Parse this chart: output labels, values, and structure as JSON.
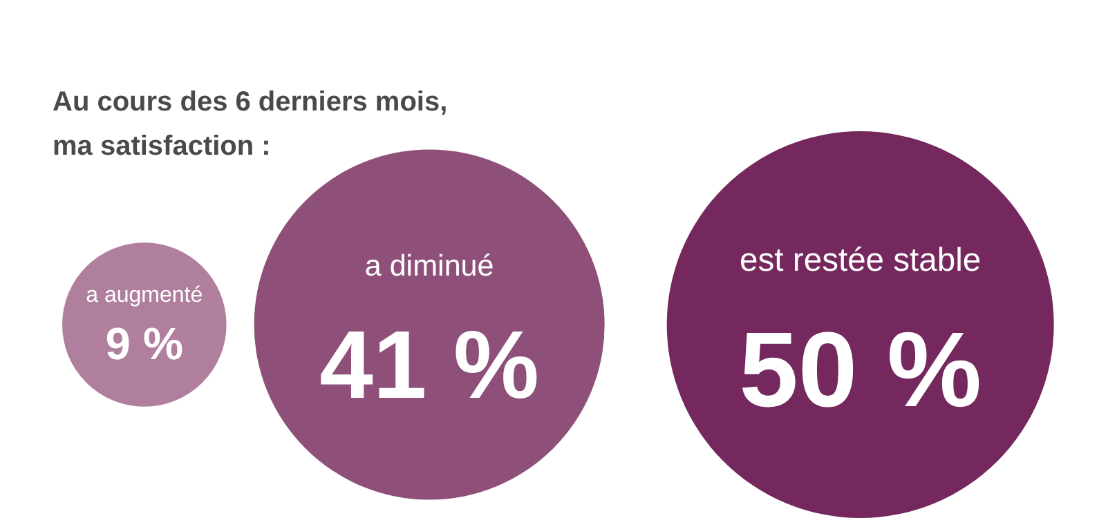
{
  "chart_data": {
    "type": "other",
    "title": "Au cours des 6 derniers mois, ma satisfaction :",
    "categories": [
      "a augmenté",
      "a diminué",
      "est restée stable"
    ],
    "values": [
      9,
      41,
      50
    ],
    "colors": [
      "#b07f9e",
      "#8e5079",
      "#74285d"
    ],
    "value_labels": [
      "9 %",
      "41 %",
      "50 %"
    ]
  }
}
